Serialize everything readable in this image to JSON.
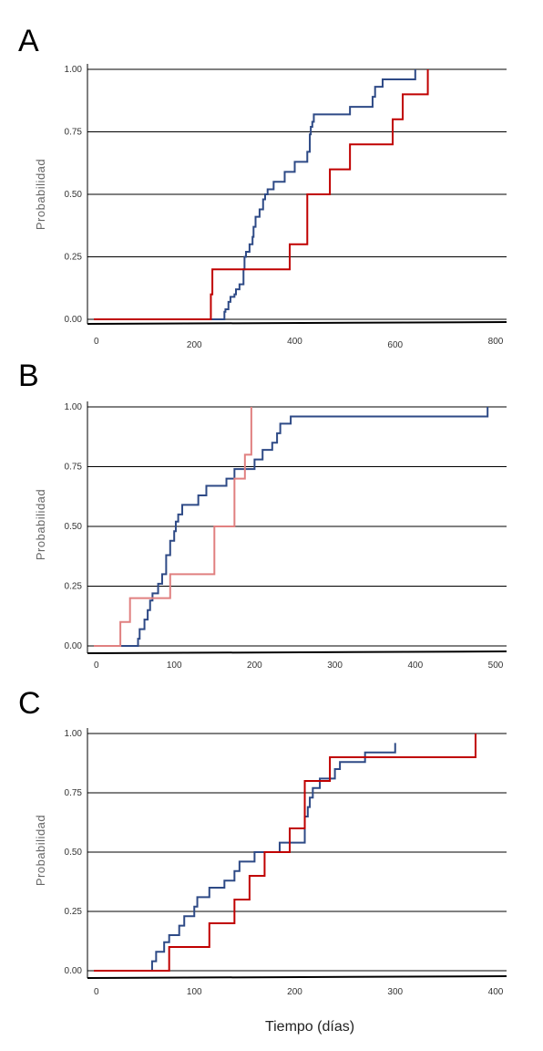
{
  "xlabel": "Tiempo (días)",
  "ylabel": "Probabilidad",
  "colors": {
    "blue": "#2e4a86",
    "red": "#c00000",
    "pink": "#e08080"
  },
  "chart_data": [
    {
      "panel": "A",
      "type": "line",
      "ylabel": "Probabilidad",
      "xlim": [
        0,
        800
      ],
      "ylim": [
        0,
        1
      ],
      "xticks": [
        "0",
        "200",
        "400",
        "600",
        "800"
      ],
      "yticks": [
        "0.00",
        "0.25",
        "0.50",
        "0.75",
        "1.00"
      ],
      "series": [
        {
          "color": "#2e4a86",
          "x": [
            0,
            258,
            260,
            262,
            268,
            272,
            280,
            283,
            290,
            298,
            300,
            303,
            310,
            316,
            318,
            322,
            330,
            337,
            341,
            346,
            358,
            380,
            400,
            425,
            430,
            432,
            435,
            438,
            455,
            510,
            555,
            560,
            575,
            640
          ],
          "y": [
            0,
            0,
            0.03,
            0.04,
            0.07,
            0.09,
            0.1,
            0.12,
            0.14,
            0.2,
            0.25,
            0.27,
            0.3,
            0.33,
            0.37,
            0.41,
            0.44,
            0.48,
            0.5,
            0.52,
            0.55,
            0.59,
            0.63,
            0.67,
            0.74,
            0.77,
            0.79,
            0.82,
            0.82,
            0.85,
            0.89,
            0.93,
            0.96,
            1.0
          ]
        },
        {
          "color": "#c00000",
          "x": [
            0,
            233,
            236,
            390,
            425,
            470,
            510,
            595,
            615,
            665
          ],
          "y": [
            0,
            0.1,
            0.2,
            0.3,
            0.5,
            0.6,
            0.7,
            0.8,
            0.9,
            1.0
          ]
        }
      ]
    },
    {
      "panel": "B",
      "type": "line",
      "ylabel": "Probabilidad",
      "xlim": [
        0,
        500
      ],
      "ylim": [
        0,
        1
      ],
      "xticks": [
        "0",
        "100",
        "200",
        "300",
        "400",
        "500"
      ],
      "yticks": [
        "0.00",
        "0.25",
        "0.50",
        "0.75",
        "1.00"
      ],
      "series": [
        {
          "color": "#2e4a86",
          "x": [
            0,
            55,
            57,
            63,
            67,
            70,
            73,
            80,
            85,
            90,
            95,
            100,
            102,
            105,
            110,
            130,
            140,
            148,
            165,
            175,
            200,
            210,
            222,
            228,
            232,
            245,
            490
          ],
          "y": [
            0,
            0.03,
            0.07,
            0.11,
            0.15,
            0.19,
            0.22,
            0.26,
            0.3,
            0.38,
            0.44,
            0.48,
            0.52,
            0.55,
            0.59,
            0.63,
            0.67,
            0.67,
            0.7,
            0.74,
            0.78,
            0.82,
            0.85,
            0.89,
            0.93,
            0.96,
            1.0
          ]
        },
        {
          "color": "#e08080",
          "x": [
            0,
            33,
            45,
            95,
            150,
            175,
            188,
            196
          ],
          "y": [
            0,
            0.1,
            0.2,
            0.3,
            0.5,
            0.7,
            0.8,
            1.0
          ]
        }
      ]
    },
    {
      "panel": "C",
      "type": "line",
      "ylabel": "Probabilidad",
      "xlim": [
        0,
        400
      ],
      "ylim": [
        0,
        1
      ],
      "xticks": [
        "0",
        "100",
        "200",
        "300",
        "400"
      ],
      "yticks": [
        "0.00",
        "0.25",
        "0.50",
        "0.75",
        "1.00"
      ],
      "series": [
        {
          "color": "#2e4a86",
          "x": [
            0,
            58,
            62,
            65,
            70,
            75,
            85,
            90,
            95,
            100,
            103,
            105,
            115,
            125,
            130,
            140,
            145,
            150,
            160,
            170,
            185,
            210,
            213,
            215,
            218,
            225,
            240,
            245,
            250,
            270,
            300
          ],
          "y": [
            0,
            0.04,
            0.08,
            0.08,
            0.12,
            0.15,
            0.19,
            0.23,
            0.23,
            0.27,
            0.31,
            0.31,
            0.35,
            0.35,
            0.38,
            0.42,
            0.46,
            0.46,
            0.5,
            0.5,
            0.54,
            0.65,
            0.69,
            0.73,
            0.77,
            0.81,
            0.85,
            0.88,
            0.88,
            0.92,
            0.96
          ]
        },
        {
          "color": "#c00000",
          "x": [
            0,
            75,
            115,
            140,
            155,
            170,
            195,
            205,
            210,
            235,
            255,
            275,
            285,
            380
          ],
          "y": [
            0,
            0.1,
            0.2,
            0.3,
            0.4,
            0.5,
            0.6,
            0.6,
            0.8,
            0.9,
            0.9,
            0.9,
            0.9,
            1.0
          ]
        }
      ]
    }
  ]
}
